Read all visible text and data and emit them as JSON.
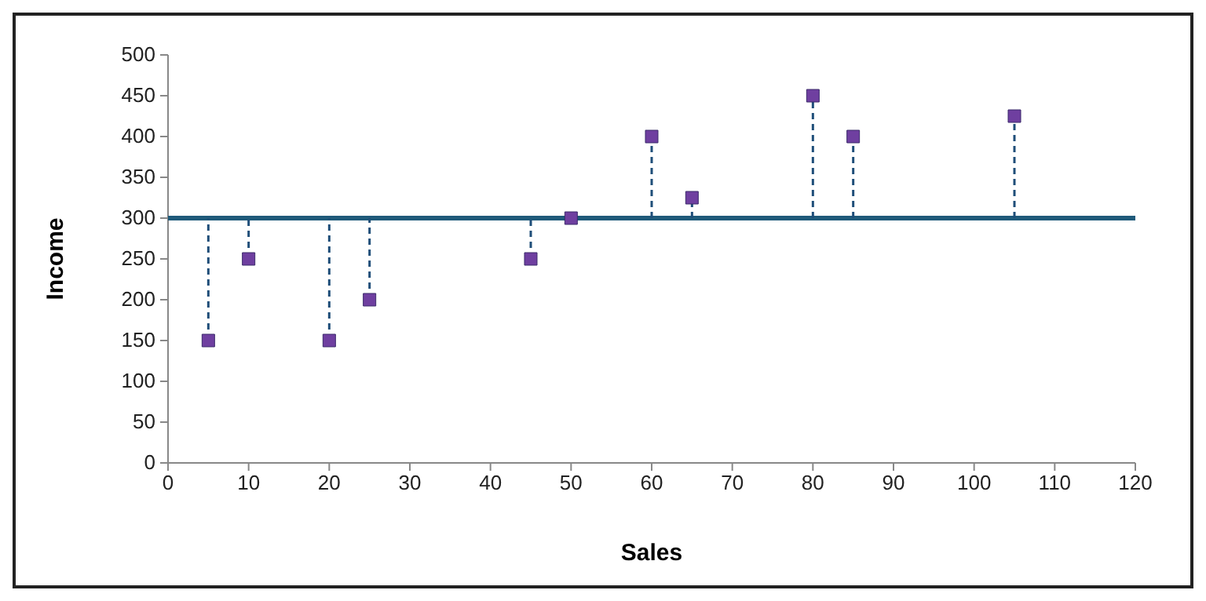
{
  "chart_data": {
    "type": "scatter",
    "xlabel": "Sales",
    "ylabel": "Income",
    "x": [
      5,
      10,
      20,
      25,
      45,
      50,
      60,
      65,
      80,
      85,
      105
    ],
    "series": [
      {
        "color": "#6f3fa0",
        "values": [
          150,
          250,
          150,
          200,
          250,
          300,
          400,
          325,
          450,
          400,
          425
        ],
        "errors": [
          [
            150,
            300
          ],
          [
            250,
            300
          ],
          [
            150,
            300
          ],
          [
            200,
            300
          ],
          [
            250,
            300
          ],
          null,
          [
            300,
            400
          ],
          [
            300,
            325
          ],
          [
            300,
            450
          ],
          [
            300,
            400
          ],
          [
            300,
            425
          ]
        ]
      }
    ],
    "xlim": [
      0,
      120
    ],
    "xticks": [
      0,
      10,
      20,
      30,
      40,
      50,
      60,
      70,
      80,
      90,
      100,
      110,
      120
    ],
    "ylim": [
      0,
      500
    ],
    "yticks": [
      0,
      50,
      100,
      150,
      200,
      250,
      300,
      350,
      400,
      450,
      500
    ],
    "ref_lines": [
      {
        "axis": "y",
        "value": 300,
        "color": "#1f5a7a"
      }
    ],
    "marker": "square",
    "grid": false
  }
}
